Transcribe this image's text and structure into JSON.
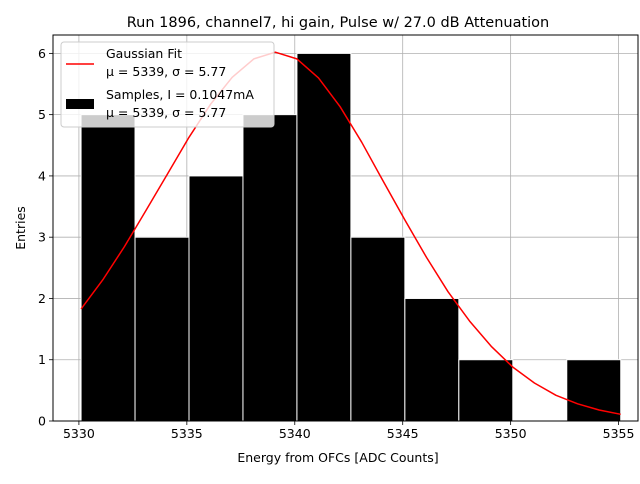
{
  "chart_data": {
    "type": "bar",
    "title": "Run 1896, channel7, hi gain, Pulse w/ 27.0 dB Attenuation",
    "xlabel": "Energy from OFCs [ADC Counts]",
    "ylabel": "Entries",
    "xlim": [
      5328.8,
      5355.9
    ],
    "ylim": [
      0,
      6.3
    ],
    "xticks": [
      5330,
      5335,
      5340,
      5345,
      5350,
      5355
    ],
    "yticks": [
      0,
      1,
      2,
      3,
      4,
      5,
      6
    ],
    "grid": true,
    "legend_position": "top-left",
    "histogram": {
      "bin_edges": [
        5330.1,
        5332.6,
        5335.1,
        5337.6,
        5340.1,
        5342.6,
        5345.1,
        5347.6,
        5350.1,
        5352.6,
        5355.1
      ],
      "counts": [
        5,
        3,
        4,
        5,
        6,
        3,
        2,
        1,
        0,
        1
      ],
      "color": "#000000",
      "edge_color": "#ffffff"
    },
    "series": [
      {
        "name": "Gaussian Fit",
        "type": "line",
        "color": "#ff0000",
        "x": [
          5330.1,
          5331.1,
          5332.1,
          5333.1,
          5334.1,
          5335.1,
          5336.1,
          5337.1,
          5338.1,
          5339.1,
          5340.1,
          5341.1,
          5342.1,
          5343.1,
          5344.1,
          5345.1,
          5346.1,
          5347.1,
          5348.1,
          5349.1,
          5350.1,
          5351.1,
          5352.1,
          5353.1,
          5354.1,
          5355.1
        ],
        "y": [
          1.83,
          2.3,
          2.84,
          3.43,
          4.03,
          4.63,
          5.17,
          5.61,
          5.91,
          6.02,
          5.91,
          5.6,
          5.13,
          4.55,
          3.91,
          3.28,
          2.67,
          2.11,
          1.63,
          1.22,
          0.88,
          0.62,
          0.42,
          0.28,
          0.18,
          0.11
        ]
      }
    ],
    "legend": [
      {
        "label": "Gaussian Fit",
        "sublabel": "μ = 5339, σ = 5.77",
        "kind": "line",
        "color": "#ff0000"
      },
      {
        "label": "Samples, I = 0.1047mA",
        "sublabel": "μ = 5339, σ = 5.77",
        "kind": "patch",
        "color": "#000000"
      }
    ]
  }
}
